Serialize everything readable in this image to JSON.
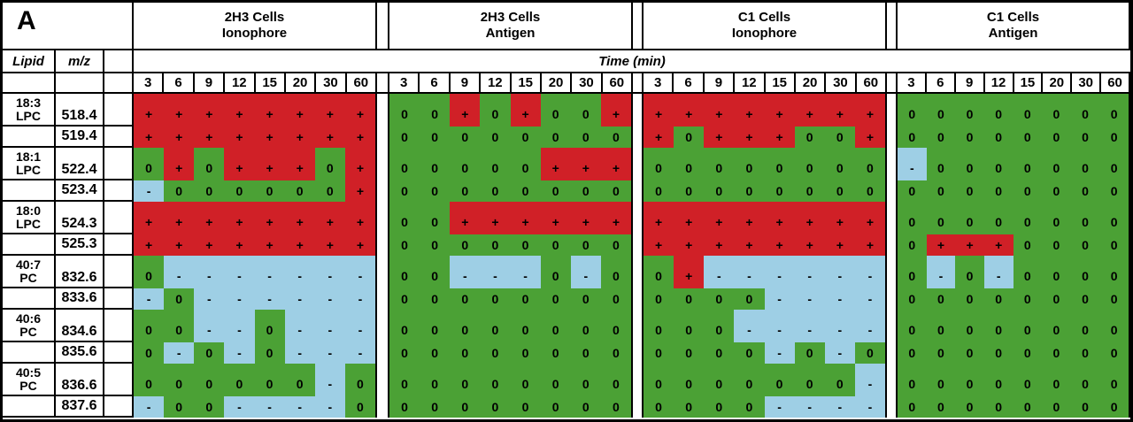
{
  "figure": {
    "label": "A"
  },
  "header": {
    "lipid": "Lipid",
    "mz": "m/z",
    "time": "Time (min)"
  },
  "chart_data": {
    "type": "heatmap",
    "xlabel": "Time (min)",
    "x_ticks": [
      "3",
      "6",
      "9",
      "12",
      "15",
      "20",
      "30",
      "60"
    ],
    "symbol_colors": {
      "+": "#d02027",
      "0": "#4ba135",
      "-": "#9ecfe5"
    },
    "symbols": [
      "+",
      "0",
      "-"
    ],
    "rows": [
      {
        "lipid_lines": [
          "18:3",
          "LPC"
        ],
        "mz": "518.4",
        "tall": true
      },
      {
        "lipid_lines": [],
        "mz": "519.4",
        "tall": false
      },
      {
        "lipid_lines": [
          "18:1",
          "LPC"
        ],
        "mz": "522.4",
        "tall": true
      },
      {
        "lipid_lines": [],
        "mz": "523.4",
        "tall": false
      },
      {
        "lipid_lines": [
          "18:0",
          "LPC"
        ],
        "mz": "524.3",
        "tall": true
      },
      {
        "lipid_lines": [],
        "mz": "525.3",
        "tall": false
      },
      {
        "lipid_lines": [
          "40:7",
          "PC"
        ],
        "mz": "832.6",
        "tall": true
      },
      {
        "lipid_lines": [],
        "mz": "833.6",
        "tall": false
      },
      {
        "lipid_lines": [
          "40:6",
          "PC"
        ],
        "mz": "834.6",
        "tall": true
      },
      {
        "lipid_lines": [],
        "mz": "835.6",
        "tall": false
      },
      {
        "lipid_lines": [
          "40:5",
          "PC"
        ],
        "mz": "836.6",
        "tall": true
      },
      {
        "lipid_lines": [],
        "mz": "837.6",
        "tall": false
      }
    ],
    "panels": [
      {
        "name": "2H3 Cells Ionophore",
        "title_lines": [
          "2H3 Cells",
          "Ionophore"
        ],
        "values": [
          "++++++++",
          "++++++++",
          "0+0+++0+",
          "-000000+",
          "++++++++",
          "++++++++",
          "0-------",
          "-0------",
          "00--0---",
          "0-0-0---",
          "000000-0",
          "-00----0"
        ]
      },
      {
        "name": "2H3 Cells Antigen",
        "title_lines": [
          "2H3 Cells",
          "Antigen"
        ],
        "values": [
          "00+0+00+",
          "00000000",
          "00000+++",
          "00000000",
          "00++++++",
          "00000000",
          "00---0-0",
          "00000000",
          "00000000",
          "00000000",
          "00000000",
          "00000000"
        ]
      },
      {
        "name": "C1 Cells Ionophore",
        "title_lines": [
          "C1 Cells",
          "Ionophore"
        ],
        "values": [
          "++++++++",
          "+0+++00+",
          "00000000",
          "00000000",
          "++++++++",
          "++++++++",
          "0+------",
          "0000----",
          "000-----",
          "0000-0-0",
          "0000000-",
          "0000----"
        ]
      },
      {
        "name": "C1 Cells Antigen",
        "title_lines": [
          "C1 Cells",
          "Antigen"
        ],
        "values": [
          "00000000",
          "00000000",
          "-0000000",
          "00000000",
          "00000000",
          "0+++0000",
          "0-0-0000",
          "00000000",
          "00000000",
          "00000000",
          "00000000",
          "00000000"
        ]
      }
    ]
  }
}
